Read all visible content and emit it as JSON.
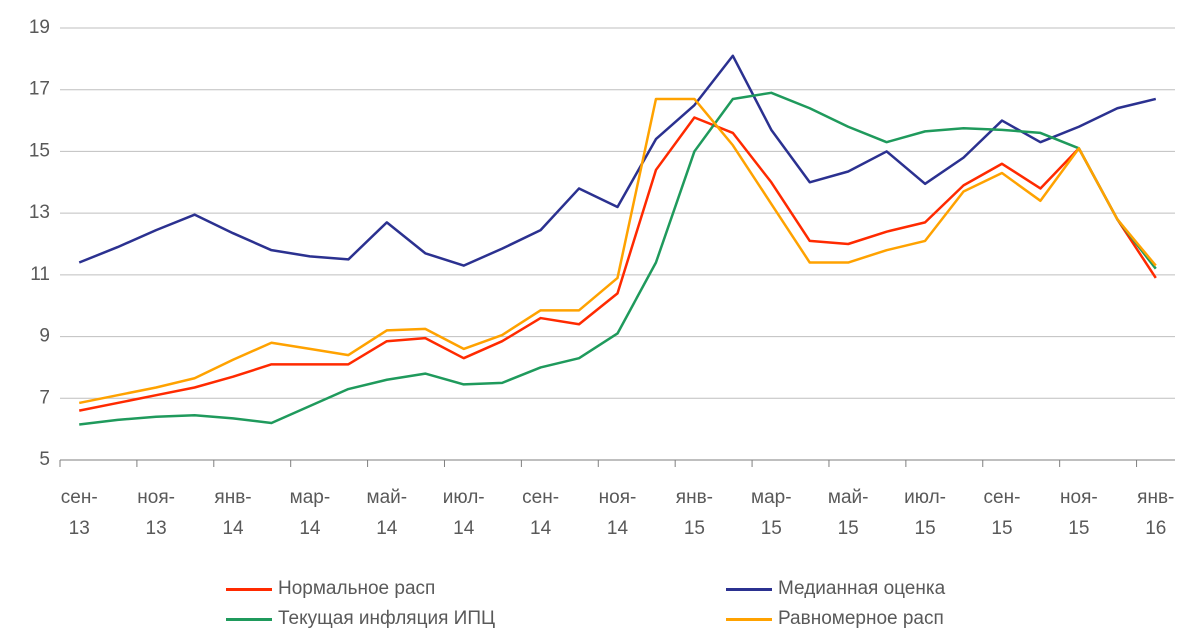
{
  "chart_data": {
    "type": "line",
    "categories": [
      "сен- 13",
      null,
      "ноя- 13",
      null,
      "янв- 14",
      null,
      "мар- 14",
      null,
      "май- 14",
      null,
      "июл- 14",
      null,
      "сен- 14",
      null,
      "ноя- 14",
      null,
      "янв- 15",
      null,
      "мар- 15",
      null,
      "май- 15",
      null,
      "июл- 15",
      null,
      "сен- 15",
      null,
      "ноя- 15",
      null,
      "янв- 16"
    ],
    "series": [
      {
        "name": "Нормальное расп",
        "color": "#ff2a00",
        "values": [
          6.6,
          6.85,
          7.1,
          7.35,
          7.7,
          8.1,
          8.1,
          8.1,
          8.85,
          8.95,
          8.3,
          8.85,
          9.6,
          9.4,
          10.4,
          14.4,
          16.1,
          15.6,
          14.0,
          12.1,
          12.0,
          12.4,
          12.7,
          13.9,
          14.6,
          13.8,
          15.1,
          12.8,
          10.9
        ]
      },
      {
        "name": "Медианная оценка",
        "color": "#2b3190",
        "values": [
          11.4,
          11.9,
          12.45,
          12.95,
          12.35,
          11.8,
          11.6,
          11.5,
          12.7,
          11.7,
          11.3,
          11.85,
          12.45,
          13.8,
          13.2,
          15.4,
          16.5,
          18.1,
          15.7,
          14.0,
          14.35,
          15.0,
          13.95,
          14.8,
          16.0,
          15.3,
          15.8,
          16.4,
          16.7
        ]
      },
      {
        "name": "Текущая инфляция ИПЦ",
        "color": "#1f9a5c",
        "values": [
          6.15,
          6.3,
          6.4,
          6.45,
          6.35,
          6.2,
          6.75,
          7.3,
          7.6,
          7.8,
          7.45,
          7.5,
          8.0,
          8.3,
          9.1,
          11.4,
          15.0,
          16.7,
          16.9,
          16.4,
          15.8,
          15.3,
          15.65,
          15.75,
          15.7,
          15.6,
          15.1,
          12.8,
          11.2
        ]
      },
      {
        "name": "Равномерное расп",
        "color": "#ffa200",
        "values": [
          6.85,
          7.1,
          7.35,
          7.65,
          8.25,
          8.8,
          8.6,
          8.4,
          9.2,
          9.25,
          8.6,
          9.05,
          9.85,
          9.85,
          10.9,
          16.7,
          16.7,
          15.2,
          13.3,
          11.4,
          11.4,
          11.8,
          12.1,
          13.7,
          14.3,
          13.4,
          15.1,
          12.8,
          11.3
        ]
      }
    ],
    "ylim": [
      5,
      19
    ],
    "yticks": [
      5,
      7,
      9,
      11,
      13,
      15,
      17,
      19
    ],
    "grid": true
  }
}
